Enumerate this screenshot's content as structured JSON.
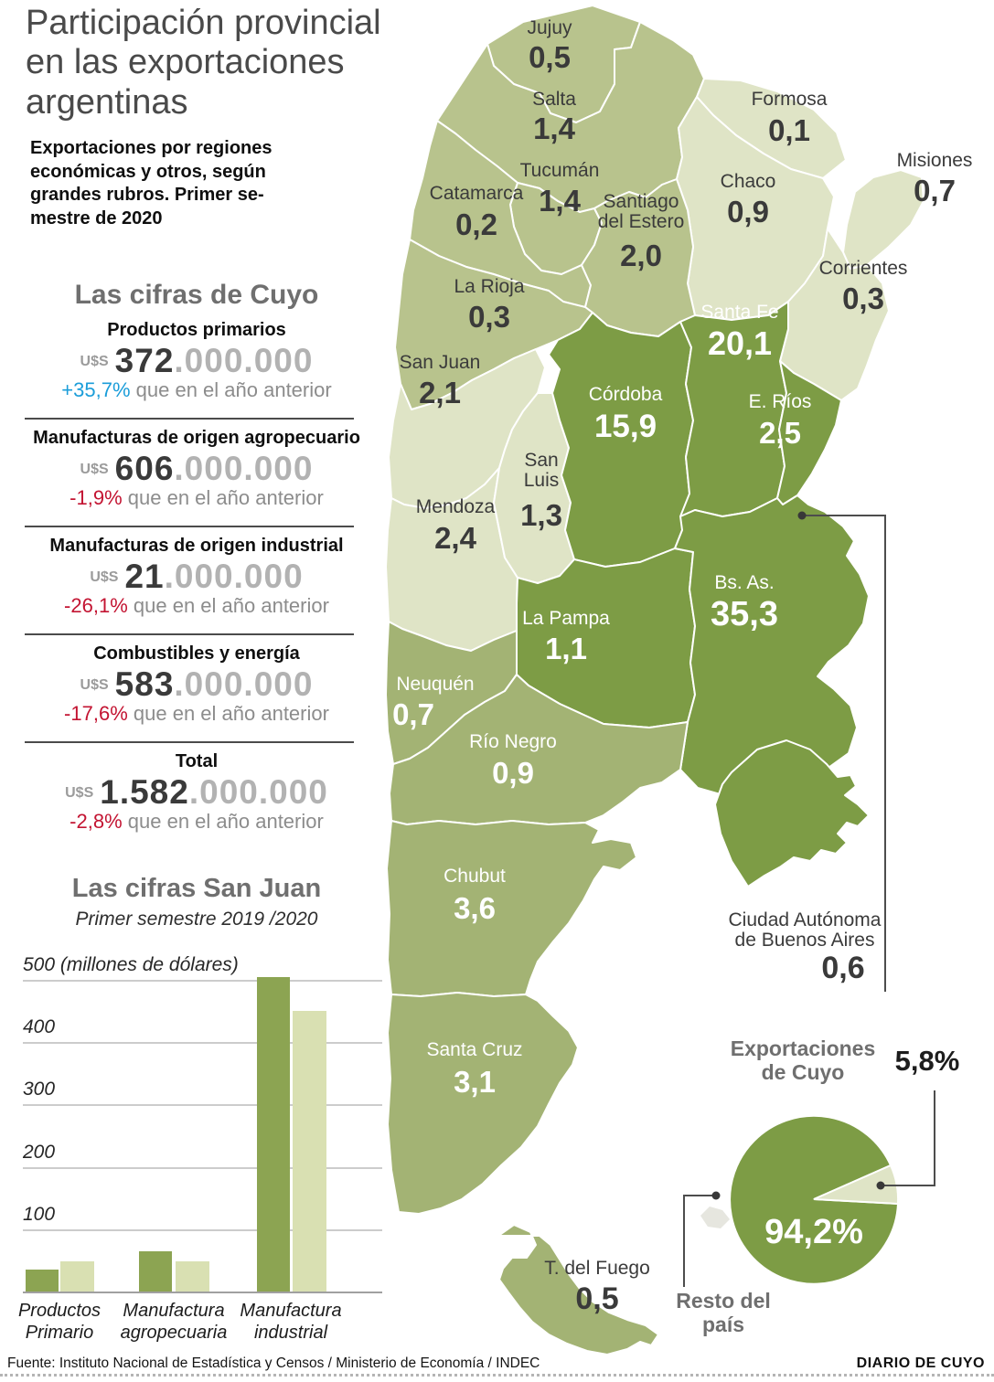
{
  "title": "Participación provincial\nen las exportaciones\nargentinas",
  "intro": "Exportaciones por regiones\neconómicas y otros, según\ngrandes rubros. Primer se-\nmestre de 2020",
  "colors": {
    "dark_green": "#7d9c45",
    "olive": "#a3b374",
    "light_green": "#b8c38d",
    "pale_green": "#dfe4c6",
    "bar_2019": "#8ca452",
    "bar_2020": "#d9e0b2",
    "positive_blue": "#1b9dd9",
    "negative_red": "#c31432",
    "heading_gray": "#6f6f6f",
    "islands_gray": "#e6e6df"
  },
  "cuyo": {
    "heading": "Las cifras de Cuyo",
    "currency": "U$S",
    "note": "que en el año anterior",
    "sections": [
      {
        "label": "Productos primarios",
        "amount_main": "372",
        "amount_rest": ".000.000",
        "change": "+35,7%",
        "trend": "up"
      },
      {
        "label": "Manufacturas de origen agropecuario",
        "amount_main": "606",
        "amount_rest": ".000.000",
        "change": "-1,9%",
        "trend": "down"
      },
      {
        "label": "Manufacturas de origen industrial",
        "amount_main": "21",
        "amount_rest": ".000.000",
        "change": "-26,1%",
        "trend": "down"
      },
      {
        "label": "Combustibles y energía",
        "amount_main": "583",
        "amount_rest": ".000.000",
        "change": "-17,6%",
        "trend": "down"
      },
      {
        "label": "Total",
        "amount_main": "1.582",
        "amount_rest": ".000.000",
        "change": "-2,8%",
        "trend": "down"
      }
    ]
  },
  "chart_data": [
    {
      "type": "bar",
      "title": "Las cifras San Juan",
      "subtitle": "Primer semestre 2019 /2020",
      "categories": [
        "Productos\nPrimario",
        "Manufactura\nagropecuaria",
        "Manufactura\nindustrial"
      ],
      "series": [
        {
          "name": "2019",
          "values": [
            35,
            64,
            505
          ]
        },
        {
          "name": "2020",
          "values": [
            48,
            48,
            450
          ]
        }
      ],
      "ylabel": "(millones de dólares)",
      "yticks": [
        100,
        200,
        300,
        400,
        500
      ],
      "ylim": [
        0,
        520
      ],
      "grid": true,
      "legend": "none"
    },
    {
      "type": "pie",
      "title": "Exportaciones de Cuyo",
      "labels": [
        "Resto del país",
        "Exportaciones de Cuyo"
      ],
      "values": [
        94.2,
        5.8
      ],
      "display_labels": [
        "94,2%",
        "5,8%"
      ]
    }
  ],
  "pie_section": {
    "title": "Exportaciones\nde Cuyo",
    "slice_label": "5,8%",
    "main_label": "94,2%",
    "other_label": "Resto del\npaís"
  },
  "map": {
    "provinces": [
      {
        "id": "jujuy",
        "name": "Jujuy",
        "value": "0,5",
        "region": "noa"
      },
      {
        "id": "salta",
        "name": "Salta",
        "value": "1,4",
        "region": "noa"
      },
      {
        "id": "formosa",
        "name": "Formosa",
        "value": "0,1",
        "region": "nea"
      },
      {
        "id": "chaco",
        "name": "Chaco",
        "value": "0,9",
        "region": "nea"
      },
      {
        "id": "misiones",
        "name": "Misiones",
        "value": "0,7",
        "region": "nea"
      },
      {
        "id": "corrientes",
        "name": "Corrientes",
        "value": "0,3",
        "region": "nea"
      },
      {
        "id": "tucuman",
        "name": "Tucumán",
        "value": "1,4",
        "region": "noa"
      },
      {
        "id": "catamarca",
        "name": "Catamarca",
        "value": "0,2",
        "region": "noa"
      },
      {
        "id": "santiago",
        "name": "Santiago\ndel Estero",
        "value": "2,0",
        "region": "noa"
      },
      {
        "id": "la_rioja",
        "name": "La Rioja",
        "value": "0,3",
        "region": "noa"
      },
      {
        "id": "san_juan",
        "name": "San Juan",
        "value": "2,1",
        "region": "cuyo"
      },
      {
        "id": "mendoza",
        "name": "Mendoza",
        "value": "2,4",
        "region": "cuyo"
      },
      {
        "id": "san_luis",
        "name": "San\nLuis",
        "value": "1,3",
        "region": "cuyo"
      },
      {
        "id": "cordoba",
        "name": "Córdoba",
        "value": "15,9",
        "region": "pampeana"
      },
      {
        "id": "santa_fe",
        "name": "Santa Fe",
        "value": "20,1",
        "region": "pampeana"
      },
      {
        "id": "e_rios",
        "name": "E. Ríos",
        "value": "2,5",
        "region": "pampeana"
      },
      {
        "id": "la_pampa",
        "name": "La Pampa",
        "value": "1,1",
        "region": "pampeana"
      },
      {
        "id": "bs_as",
        "name": "Bs. As.",
        "value": "35,3",
        "region": "pampeana"
      },
      {
        "id": "neuquen",
        "name": "Neuquén",
        "value": "0,7",
        "region": "patagonia"
      },
      {
        "id": "rio_negro",
        "name": "Río Negro",
        "value": "0,9",
        "region": "patagonia"
      },
      {
        "id": "chubut",
        "name": "Chubut",
        "value": "3,6",
        "region": "patagonia"
      },
      {
        "id": "santa_cruz",
        "name": "Santa Cruz",
        "value": "3,1",
        "region": "patagonia"
      },
      {
        "id": "t_del_fuego",
        "name": "T. del Fuego",
        "value": "0,5",
        "region": "patagonia"
      },
      {
        "id": "caba",
        "name": "Ciudad Autónoma\nde Buenos Aires",
        "value": "0,6",
        "region": "pampeana"
      }
    ]
  },
  "footer": {
    "source": "Fuente: Instituto Nacional de Estadística y Censos / Ministerio de Economía /  INDEC",
    "credit": "DIARIO DE CUYO"
  }
}
